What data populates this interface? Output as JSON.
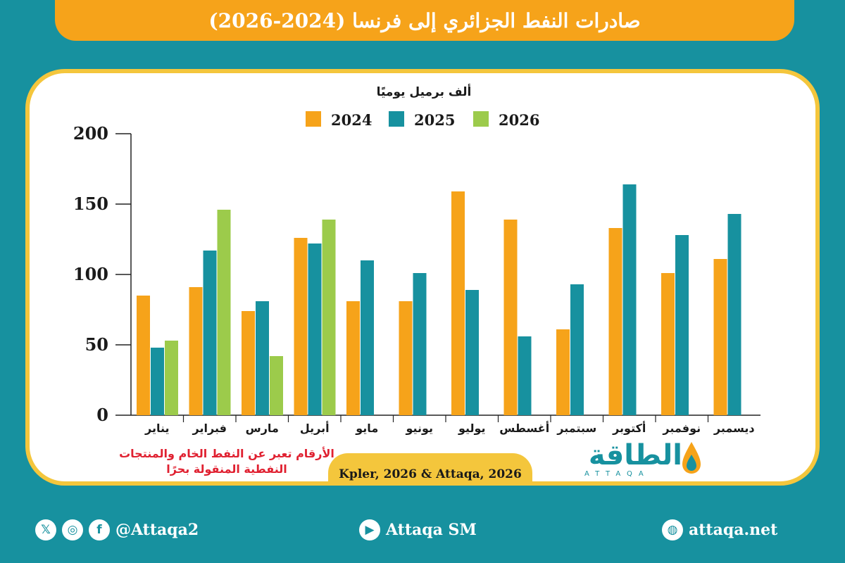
{
  "title": "صادرات النفط الجزائري إلى فرنسا (2024-2026)",
  "chart_data": {
    "type": "bar",
    "unit_label": "ألف برميل يوميًا",
    "categories": [
      "يناير",
      "فبراير",
      "مارس",
      "أبريل",
      "مايو",
      "يونيو",
      "يوليو",
      "أغسطس",
      "سبتمبر",
      "أكتوبر",
      "نوفمبر",
      "ديسمبر"
    ],
    "series": [
      {
        "name": "2024",
        "color": "#f6a31a",
        "values": [
          85,
          91,
          74,
          126,
          81,
          81,
          159,
          139,
          61,
          133,
          101,
          111
        ]
      },
      {
        "name": "2025",
        "color": "#17919f",
        "values": [
          48,
          117,
          81,
          122,
          110,
          101,
          89,
          56,
          93,
          164,
          128,
          143
        ]
      },
      {
        "name": "2026",
        "color": "#9ccb4b",
        "values": [
          53,
          146,
          42,
          139,
          null,
          null,
          null,
          null,
          null,
          null,
          null,
          null
        ]
      }
    ],
    "ylim": [
      0,
      200
    ],
    "yticks": [
      0,
      50,
      100,
      150,
      200
    ],
    "legend_position": "top-center"
  },
  "note": "الأرقام تعبر عن النفط الخام والمنتجات النفطية المنقولة بحرًا",
  "source": "Kpler, 2026 & Attaqa, 2026",
  "logo": {
    "text": "الطاقة",
    "sub": "ATTAQA"
  },
  "footer": {
    "social_handle": "@Attaqa2",
    "youtube": "Attaqa SM",
    "website": "attaqa.net"
  }
}
